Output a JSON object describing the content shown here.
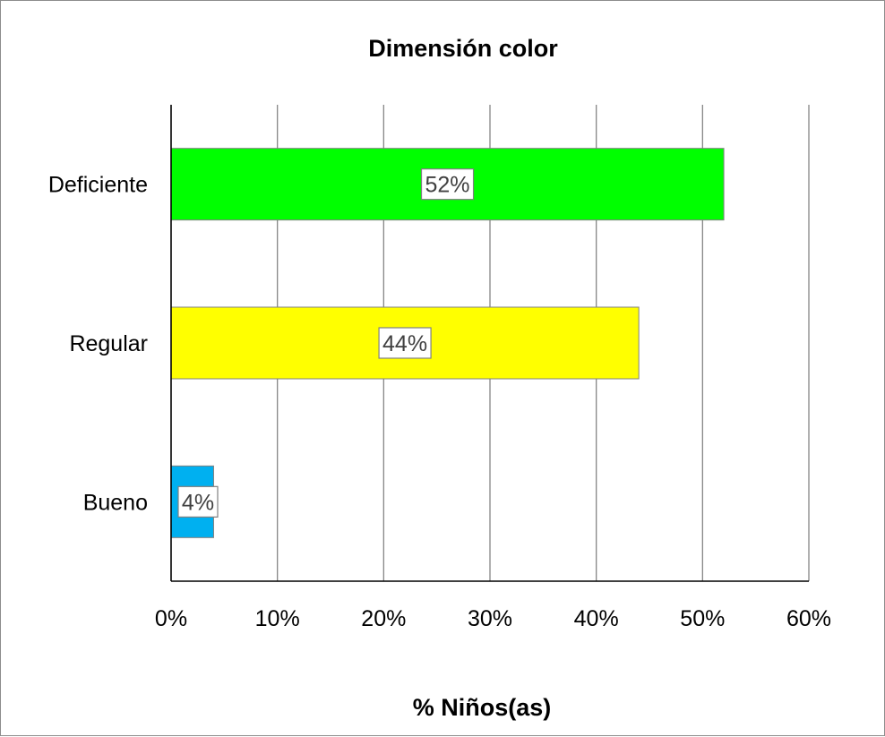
{
  "chart_data": {
    "type": "bar",
    "orientation": "horizontal",
    "title": "Dimensión color",
    "xlabel": "% Niños(as)",
    "ylabel": "",
    "categories": [
      "Deficiente",
      "Regular",
      "Bueno"
    ],
    "values": [
      52,
      44,
      4
    ],
    "data_labels": [
      "52%",
      "44%",
      "4%"
    ],
    "xlim": [
      0,
      60
    ],
    "x_ticks": [
      0,
      10,
      20,
      30,
      40,
      50,
      60
    ],
    "x_tick_labels": [
      "0%",
      "10%",
      "20%",
      "30%",
      "40%",
      "50%",
      "60%"
    ],
    "bar_colors": [
      "#00ff00",
      "#ffff00",
      "#00b0f0"
    ],
    "grid": true,
    "legend": "none"
  }
}
